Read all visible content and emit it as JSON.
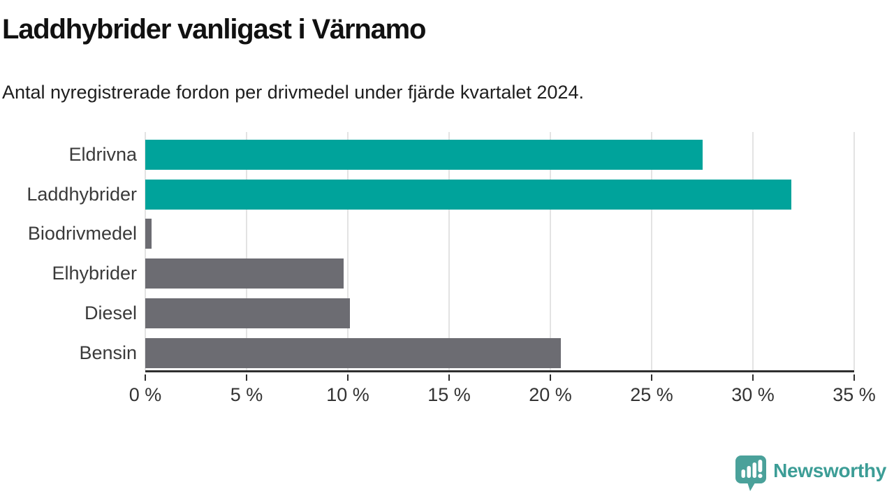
{
  "chart_data": {
    "type": "bar",
    "orientation": "horizontal",
    "title": "Laddhybrider vanligast i Värnamo",
    "subtitle": "Antal nyregistrerade fordon per drivmedel under fjärde kvartalet 2024.",
    "categories": [
      "Eldrivna",
      "Laddhybrider",
      "Biodrivmedel",
      "Elhybrider",
      "Diesel",
      "Bensin"
    ],
    "values": [
      27.5,
      31.9,
      0.3,
      9.8,
      10.1,
      20.5
    ],
    "highlighted": [
      true,
      true,
      false,
      false,
      false,
      false
    ],
    "xlim": [
      0,
      35
    ],
    "xtick_values": [
      0,
      5,
      10,
      15,
      20,
      25,
      30,
      35
    ],
    "xtick_labels": [
      "0 %",
      "5 %",
      "10 %",
      "15 %",
      "20 %",
      "25 %",
      "30 %",
      "35 %"
    ],
    "grid": "vertical",
    "legend": "none",
    "colors": {
      "highlight": "#00A39B",
      "default": "#6C6C72",
      "gridline": "#E3E3E3",
      "axis": "#2E2E2E",
      "category_label": "#3A3A3A",
      "tick_label": "#333333"
    }
  },
  "branding": {
    "logo_text": "Newsworthy",
    "logo_color": "#3C9D96",
    "icon": "newsworthy-speech-bubble-chart-icon"
  }
}
